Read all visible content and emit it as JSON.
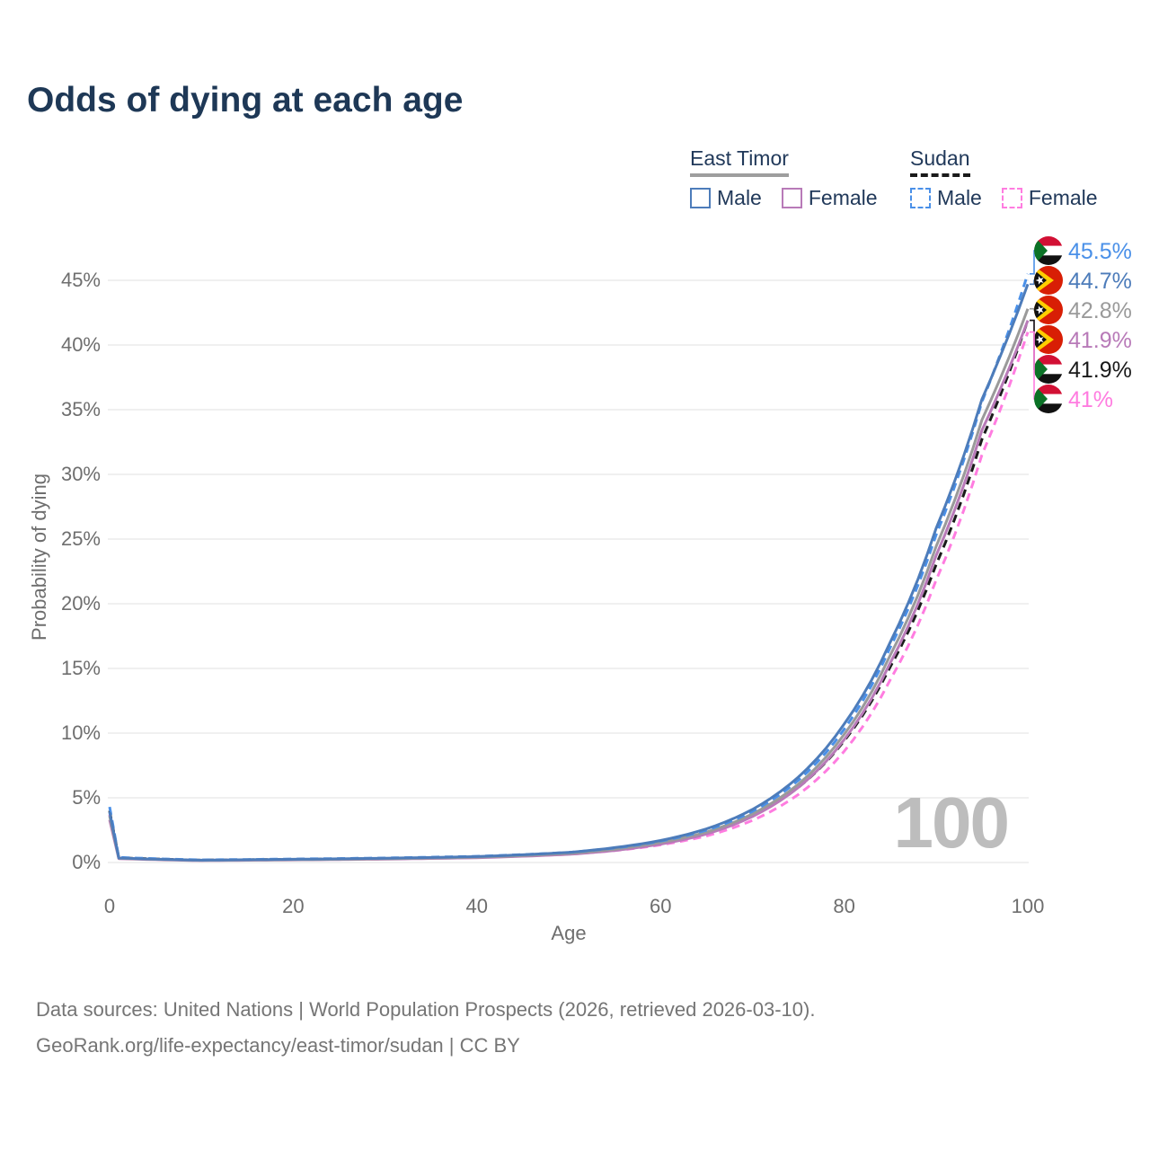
{
  "title": "Odds of dying at each age",
  "legend": {
    "groups": [
      {
        "name": "East Timor",
        "line_style": "solid",
        "underline_color": "#9e9e9e",
        "items": [
          {
            "label": "Male",
            "color": "#4d7cba"
          },
          {
            "label": "Female",
            "color": "#b87ab8"
          }
        ]
      },
      {
        "name": "Sudan",
        "line_style": "dashed",
        "underline_color": "#1a1a1a",
        "items": [
          {
            "label": "Male",
            "color": "#4a90e8"
          },
          {
            "label": "Female",
            "color": "#ff7ce0"
          }
        ]
      }
    ]
  },
  "chart_data": {
    "type": "line",
    "title": "Odds of dying at each age",
    "xlabel": "Age",
    "ylabel": "Probability of dying",
    "xlim": [
      0,
      100
    ],
    "ylim": [
      0,
      47.5
    ],
    "x_ticks": [
      0,
      20,
      40,
      60,
      80,
      100
    ],
    "y_ticks_percent": [
      0,
      5,
      10,
      15,
      20,
      25,
      30,
      35,
      40,
      45
    ],
    "grid": "horizontal",
    "age_cursor_label": "100",
    "x": [
      0,
      1,
      10,
      20,
      30,
      40,
      50,
      55,
      60,
      65,
      70,
      75,
      80,
      85,
      90,
      95,
      100
    ],
    "series": [
      {
        "id": "sudan-male",
        "country": "Sudan",
        "label": "Male",
        "color": "#4a90e8",
        "dashed": true,
        "flag": "sudan",
        "end_label": "45.5%",
        "values": [
          4.3,
          0.4,
          0.2,
          0.27,
          0.35,
          0.48,
          0.78,
          1.12,
          1.65,
          2.5,
          3.95,
          6.35,
          10.3,
          16.6,
          25.3,
          35.6,
          45.5
        ]
      },
      {
        "id": "east-timor-male",
        "country": "East Timor",
        "label": "Male",
        "color": "#4d7cba",
        "dashed": false,
        "flag": "east-timor",
        "end_label": "44.7%",
        "values": [
          3.9,
          0.35,
          0.18,
          0.25,
          0.33,
          0.46,
          0.78,
          1.15,
          1.7,
          2.6,
          4.1,
          6.6,
          10.7,
          17.0,
          25.8,
          35.8,
          44.7
        ]
      },
      {
        "id": "east-timor",
        "country": "East Timor",
        "label": "East Timor",
        "color": "#9a9a9a",
        "dashed": false,
        "flag": "east-timor",
        "end_label": "42.8%",
        "values": [
          3.6,
          0.33,
          0.17,
          0.22,
          0.29,
          0.41,
          0.7,
          1.03,
          1.55,
          2.35,
          3.75,
          6.05,
          9.9,
          16.0,
          24.4,
          34.2,
          42.8
        ]
      },
      {
        "id": "east-timor-female",
        "country": "East Timor",
        "label": "Female",
        "color": "#b87ab8",
        "dashed": false,
        "flag": "east-timor",
        "end_label": "41.9%",
        "values": [
          3.3,
          0.3,
          0.15,
          0.2,
          0.26,
          0.37,
          0.63,
          0.93,
          1.42,
          2.2,
          3.55,
          5.8,
          9.5,
          15.4,
          23.7,
          33.4,
          41.9
        ]
      },
      {
        "id": "sudan",
        "country": "Sudan",
        "label": "Sudan",
        "color": "#1a1a1a",
        "dashed": true,
        "flag": "sudan",
        "end_label": "41.9%",
        "values": [
          4.0,
          0.37,
          0.18,
          0.24,
          0.31,
          0.43,
          0.71,
          1.02,
          1.5,
          2.3,
          3.6,
          5.8,
          9.4,
          15.1,
          23.0,
          32.7,
          41.9
        ]
      },
      {
        "id": "sudan-female",
        "country": "Sudan",
        "label": "Female",
        "color": "#ff7ce0",
        "dashed": true,
        "flag": "sudan",
        "end_label": "41%",
        "values": [
          3.7,
          0.34,
          0.17,
          0.22,
          0.28,
          0.39,
          0.64,
          0.92,
          1.36,
          2.05,
          3.25,
          5.25,
          8.6,
          14.1,
          21.8,
          31.5,
          41.0
        ]
      }
    ]
  },
  "footer": {
    "line1": "Data sources: United Nations | World Population Prospects (2026, retrieved 2026-03-10).",
    "line2": "GeoRank.org/life-expectancy/east-timor/sudan | CC BY"
  }
}
